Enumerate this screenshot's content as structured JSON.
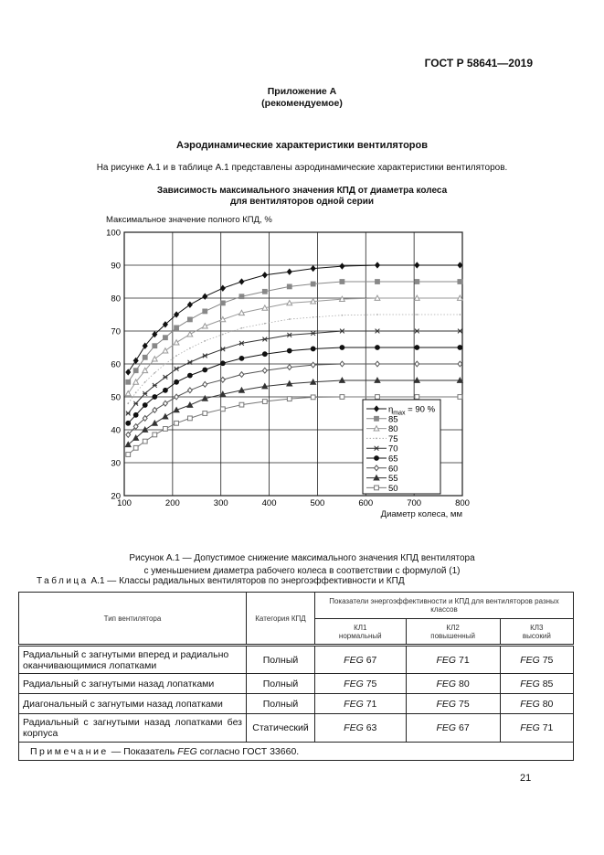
{
  "header": {
    "standard": "ГОСТ Р 58641—2019"
  },
  "appendix": {
    "title": "Приложение А",
    "subtitle": "(рекомендуемое)"
  },
  "section_title": "Аэродинамические характеристики вентиляторов",
  "intro": "На рисунке А.1 и в таблице А.1 представлены аэродинамические характеристики вентиляторов.",
  "figure": {
    "title_line1": "Зависимость максимального значения КПД от диаметра колеса",
    "title_line2": "для вентиляторов одной серии",
    "caption_line1": "Рисунок А.1 — Допустимое снижение максимального значения КПД вентилятора",
    "caption_line2": "с уменьшением диаметра рабочего колеса в соответствии с формулой (1)"
  },
  "chart_data": {
    "type": "line",
    "ylabel": "Максимальное значение полного КПД, %",
    "xlabel": "Диаметр колеса, мм",
    "xlim": [
      100,
      800
    ],
    "ylim": [
      20,
      100
    ],
    "xticks": [
      "100",
      "200",
      "300",
      "400",
      "500",
      "600",
      "700",
      "800"
    ],
    "yticks": [
      "20",
      "30",
      "40",
      "50",
      "60",
      "70",
      "80",
      "90",
      "100"
    ],
    "grid": true,
    "legend_position": "bottom-right",
    "legend_prefix": "η",
    "legend_sub": "max",
    "legend_first_suffix": " = 90 %",
    "x": [
      108,
      124,
      143,
      163,
      185,
      208,
      236,
      267,
      304,
      343,
      391,
      442,
      491,
      551,
      624,
      706,
      795
    ],
    "series": [
      {
        "name": "90",
        "marker": "diamond-filled",
        "color": "#111111",
        "values": [
          57.5,
          61,
          65.5,
          69,
          72,
          75,
          78,
          80.5,
          83,
          85,
          87,
          88,
          89,
          89.7,
          90,
          90,
          90
        ]
      },
      {
        "name": "85",
        "marker": "square-filled",
        "color": "#888888",
        "values": [
          54.5,
          58,
          62,
          65.5,
          68,
          71,
          73.5,
          76,
          78.5,
          80.5,
          82,
          83.5,
          84.3,
          85,
          85,
          85,
          85
        ]
      },
      {
        "name": "80",
        "marker": "triangle-open",
        "color": "#999999",
        "values": [
          51,
          54.5,
          58,
          61.5,
          64,
          66.5,
          69,
          71.5,
          73.5,
          75.5,
          77,
          78.5,
          79,
          79.7,
          80,
          80,
          80
        ]
      },
      {
        "name": "75",
        "marker": "dot",
        "color": "#aaaaaa",
        "values": [
          48,
          51.3,
          54.5,
          57.3,
          60,
          62.5,
          64.8,
          67,
          69,
          70.9,
          72.3,
          73.6,
          74.2,
          74.8,
          75,
          75,
          75
        ]
      },
      {
        "name": "70",
        "marker": "asterisk",
        "color": "#333333",
        "values": [
          45,
          48,
          51,
          53.5,
          56,
          58.5,
          60.5,
          62.5,
          64.5,
          66.3,
          67.5,
          68.8,
          69.3,
          70,
          70,
          70,
          70
        ]
      },
      {
        "name": "65",
        "marker": "circle-filled",
        "color": "#111111",
        "values": [
          42,
          44.5,
          47.5,
          50,
          52,
          54.5,
          56.5,
          58.2,
          60.2,
          61.7,
          63,
          64,
          64.6,
          65,
          65,
          65,
          65
        ]
      },
      {
        "name": "60",
        "marker": "diamond-open",
        "color": "#555555",
        "values": [
          38.5,
          41,
          43.5,
          46,
          48,
          50,
          52,
          53.8,
          55.2,
          56.8,
          58,
          59,
          59.7,
          60,
          60,
          60,
          60
        ]
      },
      {
        "name": "55",
        "marker": "triangle-filled",
        "color": "#333333",
        "values": [
          35.5,
          37.5,
          40,
          42,
          44,
          46,
          47.5,
          49.5,
          50.8,
          52,
          53.2,
          54,
          54.5,
          55,
          55,
          55,
          55
        ]
      },
      {
        "name": "50",
        "marker": "square-open",
        "color": "#777777",
        "values": [
          32.5,
          34.5,
          36.5,
          38.5,
          40.3,
          42,
          43.5,
          45,
          46.3,
          47.6,
          48.6,
          49.4,
          49.9,
          50,
          50,
          50,
          50
        ]
      }
    ]
  },
  "table": {
    "title_prefix": "Таблица",
    "title_rest": " А.1 — Классы радиальных вентиляторов по энергоэффективности и КПД",
    "headers": {
      "type": "Тип вентилятора",
      "category": "Категория КПД",
      "indicators": "Показатели энергоэффективности и КПД для вентиляторов разных классов",
      "kl1": "КЛ1",
      "kl1_sub": "нормальный",
      "kl2": "КЛ2",
      "kl2_sub": "повышенный",
      "kl3": "КЛ3",
      "kl3_sub": "высокий"
    },
    "feg": "FEG",
    "rows": [
      {
        "type": "Радиальный с загнутыми вперед и радиально оканчивающимися лопатками",
        "category": "Полный",
        "kl1": "67",
        "kl2": "71",
        "kl3": "75"
      },
      {
        "type": "Радиальный с загнутыми назад лопатками",
        "category": "Полный",
        "kl1": "75",
        "kl2": "80",
        "kl3": "85"
      },
      {
        "type": "Диагональный с загнутыми назад лопатками",
        "category": "Полный",
        "kl1": "71",
        "kl2": "75",
        "kl3": "80"
      },
      {
        "type": "Радиальный с загнутыми назад лопатками без корпуса",
        "category": "Статический",
        "kl1": "63",
        "kl2": "67",
        "kl3": "71"
      }
    ],
    "note_label": "Примечание",
    "note_a": " — Показатель ",
    "note_b": " согласно ГОСТ 33660."
  },
  "page_number": "21"
}
